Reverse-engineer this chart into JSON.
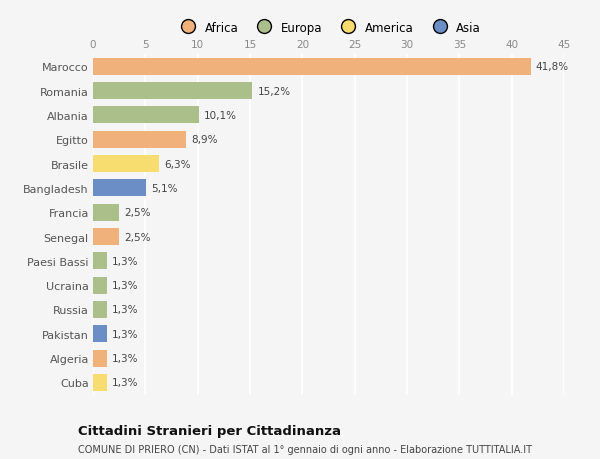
{
  "categories": [
    "Marocco",
    "Romania",
    "Albania",
    "Egitto",
    "Brasile",
    "Bangladesh",
    "Francia",
    "Senegal",
    "Paesi Bassi",
    "Ucraina",
    "Russia",
    "Pakistan",
    "Algeria",
    "Cuba"
  ],
  "values": [
    41.8,
    15.2,
    10.1,
    8.9,
    6.3,
    5.1,
    2.5,
    2.5,
    1.3,
    1.3,
    1.3,
    1.3,
    1.3,
    1.3
  ],
  "labels": [
    "41,8%",
    "15,2%",
    "10,1%",
    "8,9%",
    "6,3%",
    "5,1%",
    "2,5%",
    "2,5%",
    "1,3%",
    "1,3%",
    "1,3%",
    "1,3%",
    "1,3%",
    "1,3%"
  ],
  "colors": [
    "#F0B27A",
    "#ABBF8A",
    "#ABBF8A",
    "#F0B27A",
    "#F7DC6F",
    "#6B8EC7",
    "#ABBF8A",
    "#F0B27A",
    "#ABBF8A",
    "#ABBF8A",
    "#ABBF8A",
    "#6B8EC7",
    "#F0B27A",
    "#F7DC6F"
  ],
  "legend_labels": [
    "Africa",
    "Europa",
    "America",
    "Asia"
  ],
  "legend_colors": [
    "#F0B27A",
    "#ABBF8A",
    "#F7DC6F",
    "#6B8EC7"
  ],
  "xlim": [
    0,
    45
  ],
  "xticks": [
    0,
    5,
    10,
    15,
    20,
    25,
    30,
    35,
    40,
    45
  ],
  "title": "Cittadini Stranieri per Cittadinanza",
  "subtitle": "COMUNE DI PRIERO (CN) - Dati ISTAT al 1° gennaio di ogni anno - Elaborazione TUTTITALIA.IT",
  "background_color": "#F5F5F5",
  "bar_height": 0.7,
  "label_fontsize": 7.5,
  "ytick_fontsize": 8,
  "xtick_fontsize": 7.5,
  "title_fontsize": 9.5,
  "subtitle_fontsize": 7
}
